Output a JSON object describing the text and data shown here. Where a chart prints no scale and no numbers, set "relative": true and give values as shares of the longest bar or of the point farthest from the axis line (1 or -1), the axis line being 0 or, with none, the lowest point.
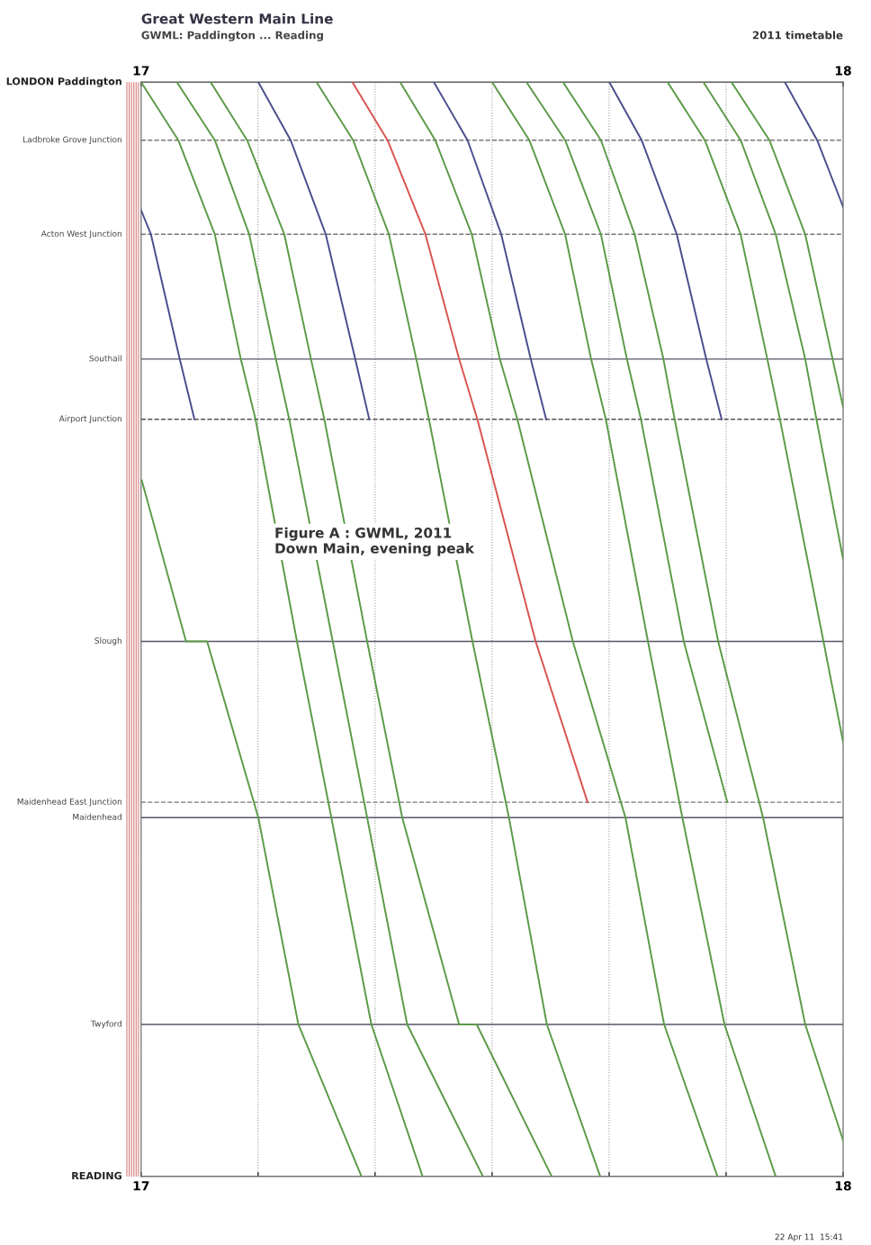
{
  "chart_data": {
    "type": "line",
    "title": "Great Western Main Line",
    "subtitle": "GWML: Paddington ... Reading",
    "annotations": [
      "2011 timetable",
      "Figure A : GWML, 2011\nDown Main, evening peak",
      "22 Apr 11  15:41"
    ],
    "relative": true,
    "xlim": [
      17,
      18
    ],
    "xticks": [
      17,
      {
        "value": 17.1667,
        "label": null
      },
      {
        "value": 17.3333,
        "label": null
      },
      {
        "value": 17.5,
        "label": null
      },
      {
        "value": 17.6667,
        "label": null
      },
      {
        "value": 17.8333,
        "label": null
      },
      18
    ],
    "x2lim": [
      17,
      18
    ],
    "x2ticks": [
      17,
      18
    ],
    "ref_lines": [
      {
        "axis": "y",
        "value": 1,
        "label": "LONDON Paddington",
        "line_style": "solid",
        "color": "#666666"
      },
      {
        "axis": "y",
        "value": 0.947,
        "label": "Ladbroke Grove Junction",
        "line_style": "dashed",
        "color": "#777777"
      },
      {
        "axis": "y",
        "value": 0.861,
        "label": "Acton West Junction",
        "line_style": "dashed",
        "color": "#777777"
      },
      {
        "axis": "y",
        "value": 0.747,
        "label": "Southall",
        "line_style": "solid",
        "color": "#555566"
      },
      {
        "axis": "y",
        "value": 0.692,
        "label": "Airport Junction",
        "line_style": "dashed",
        "color": "#555555"
      },
      {
        "axis": "y",
        "value": 0.489,
        "label": "Slough",
        "line_style": "solid",
        "color": "#555566"
      },
      {
        "axis": "y",
        "value": 0.342,
        "label": "Maidenhead East Junction",
        "line_style": "dashed",
        "color": "#777777"
      },
      {
        "axis": "y",
        "value": 0.328,
        "label": "Maidenhead",
        "line_style": "solid",
        "color": "#555566"
      },
      {
        "axis": "y",
        "value": 0.139,
        "label": "Twyford",
        "line_style": "solid",
        "color": "#555566"
      },
      {
        "axis": "y",
        "value": 0,
        "label": "READING",
        "line_style": "solid",
        "color": "#666666"
      }
    ],
    "grid": "x",
    "marker": "none",
    "line_style": "solid",
    "series": [
      {
        "color": "#4a4e8c",
        "x": [
          17.0,
          17.014,
          17.055,
          17.076
        ],
        "values": [
          0.883,
          0.861,
          0.747,
          0.692
        ]
      },
      {
        "color": "#5b9a48",
        "x": [
          17.001,
          17.064,
          17.094,
          17.167,
          17.224,
          17.314
        ],
        "values": [
          0.636,
          0.489,
          0.489,
          0.328,
          0.139,
          0
        ]
      },
      {
        "color": "#5b9a48",
        "x": [
          17.0,
          17.053,
          17.105,
          17.142,
          17.163,
          17.222,
          17.271,
          17.328,
          17.401
        ],
        "values": [
          1,
          0.947,
          0.861,
          0.747,
          0.692,
          0.489,
          0.328,
          0.139,
          0
        ]
      },
      {
        "color": "#5b9a48",
        "x": [
          17.051,
          17.105,
          17.154,
          17.192,
          17.211,
          17.273,
          17.322,
          17.379,
          17.487
        ],
        "values": [
          1,
          0.947,
          0.861,
          0.747,
          0.692,
          0.489,
          0.328,
          0.139,
          0
        ]
      },
      {
        "color": "#5b9a48",
        "x": [
          17.099,
          17.151,
          17.204,
          17.242,
          17.261,
          17.322,
          17.372,
          17.453,
          17.478,
          17.585
        ],
        "values": [
          1,
          0.947,
          0.861,
          0.747,
          0.692,
          0.489,
          0.328,
          0.139,
          0.139,
          0
        ]
      },
      {
        "color": "#4a4e8c",
        "x": [
          17.167,
          17.213,
          17.263,
          17.305,
          17.325
        ],
        "values": [
          1,
          0.947,
          0.861,
          0.747,
          0.692
        ]
      },
      {
        "color": "#5b9a48",
        "x": [
          17.25,
          17.302,
          17.353,
          17.392,
          17.41,
          17.472,
          17.524,
          17.578,
          17.654
        ],
        "values": [
          1,
          0.947,
          0.861,
          0.747,
          0.692,
          0.489,
          0.328,
          0.139,
          0
        ]
      },
      {
        "color": "#d9534f",
        "x": [
          17.301,
          17.351,
          17.405,
          17.453,
          17.479,
          17.562,
          17.636
        ],
        "values": [
          1,
          0.947,
          0.861,
          0.747,
          0.692,
          0.489,
          0.342
        ]
      },
      {
        "color": "#5b9a48",
        "x": [
          17.369,
          17.419,
          17.471,
          17.511,
          17.536,
          17.615,
          17.69,
          17.745,
          17.821
        ],
        "values": [
          1,
          0.947,
          0.861,
          0.747,
          0.692,
          0.489,
          0.328,
          0.139,
          0
        ]
      },
      {
        "color": "#4a4e8c",
        "x": [
          17.417,
          17.465,
          17.513,
          17.555,
          17.577
        ],
        "values": [
          1,
          0.947,
          0.861,
          0.747,
          0.692
        ]
      },
      {
        "color": "#5b9a48",
        "x": [
          17.5,
          17.553,
          17.604,
          17.641,
          17.662,
          17.722,
          17.771,
          17.831,
          17.904
        ],
        "values": [
          1,
          0.947,
          0.861,
          0.747,
          0.692,
          0.489,
          0.328,
          0.139,
          0
        ]
      },
      {
        "color": "#5b9a48",
        "x": [
          17.549,
          17.604,
          17.655,
          17.692,
          17.712,
          17.773,
          17.835
        ],
        "values": [
          1,
          0.947,
          0.861,
          0.747,
          0.692,
          0.489,
          0.342
        ]
      },
      {
        "color": "#5b9a48",
        "x": [
          17.601,
          17.655,
          17.703,
          17.744,
          17.76,
          17.822,
          17.886,
          17.946,
          18.0
        ],
        "values": [
          1,
          0.947,
          0.861,
          0.747,
          0.692,
          0.489,
          0.328,
          0.139,
          0.033
        ]
      },
      {
        "color": "#4a4e8c",
        "x": [
          17.667,
          17.713,
          17.763,
          17.805,
          17.827
        ],
        "values": [
          1,
          0.947,
          0.861,
          0.747,
          0.692
        ]
      },
      {
        "color": "#5b9a48",
        "x": [
          17.75,
          17.803,
          17.854,
          17.892,
          17.91,
          17.972,
          18.0
        ],
        "values": [
          1,
          0.947,
          0.861,
          0.747,
          0.692,
          0.489,
          0.397
        ]
      },
      {
        "color": "#5b9a48",
        "x": [
          17.801,
          17.854,
          17.904,
          17.946,
          17.962,
          18.0
        ],
        "values": [
          1,
          0.947,
          0.861,
          0.747,
          0.692,
          0.564
        ]
      },
      {
        "color": "#5b9a48",
        "x": [
          17.841,
          17.895,
          17.946,
          17.985,
          18.0
        ],
        "values": [
          1,
          0.947,
          0.861,
          0.747,
          0.703
        ]
      },
      {
        "color": "#4a4e8c",
        "x": [
          17.917,
          17.963,
          18.0
        ],
        "values": [
          1,
          0.947,
          0.886
        ]
      }
    ]
  }
}
